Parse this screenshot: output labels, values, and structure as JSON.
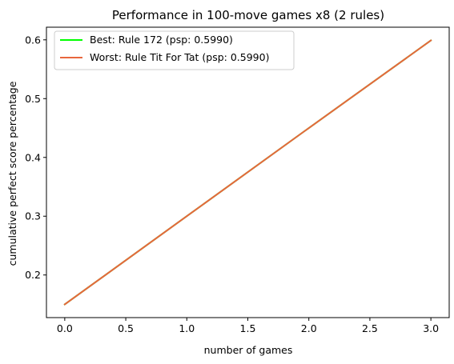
{
  "chart_data": {
    "type": "line",
    "title": "Performance in 100-move games x8 (2 rules)",
    "xlabel": "number of games",
    "ylabel": "cumulative perfect score percentage",
    "xlim": [
      -0.15,
      3.15
    ],
    "ylim": [
      0.1275,
      0.6215
    ],
    "xticks": [
      0.0,
      0.5,
      1.0,
      1.5,
      2.0,
      2.5,
      3.0
    ],
    "xtick_labels": [
      "0.0",
      "0.5",
      "1.0",
      "1.5",
      "2.0",
      "2.5",
      "3.0"
    ],
    "yticks": [
      0.2,
      0.3,
      0.4,
      0.5,
      0.6
    ],
    "ytick_labels": [
      "0.2",
      "0.3",
      "0.4",
      "0.5",
      "0.6"
    ],
    "grid": false,
    "legend_position": "top-left",
    "series": [
      {
        "name": "Best: Rule 172 (psp: 0.5990)",
        "color": "#00ff00",
        "x": [
          0,
          1,
          2,
          3
        ],
        "values": [
          0.15,
          0.3,
          0.45,
          0.599
        ]
      },
      {
        "name": "Worst: Rule Tit For Tat (psp: 0.5990)",
        "color": "#e8663d",
        "x": [
          0,
          1,
          2,
          3
        ],
        "values": [
          0.15,
          0.3,
          0.45,
          0.599
        ]
      }
    ]
  }
}
